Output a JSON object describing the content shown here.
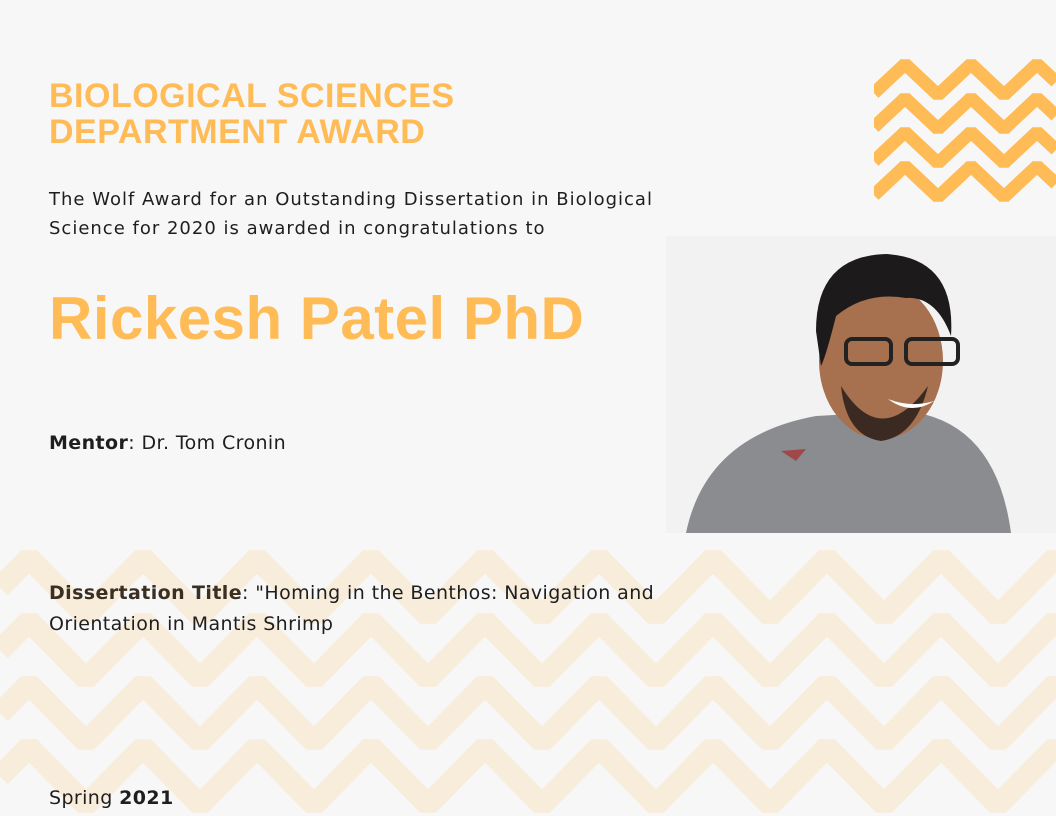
{
  "colors": {
    "accent": "#ffbb55",
    "pattern_light": "#f8ecda",
    "background": "#f7f7f7"
  },
  "heading": {
    "line1": "BIOLOGICAL SCIENCES",
    "line2": "DEPARTMENT AWARD"
  },
  "intro": "The Wolf Award for an Outstanding Dissertation in Biological Science for 2020 is awarded in congratulations to",
  "recipient": "Rickesh Patel PhD",
  "mentor": {
    "label": "Mentor",
    "value": ": Dr. Tom Cronin"
  },
  "dissertation": {
    "label": "Dissertation Title",
    "value": ": \"Homing in the Benthos: Navigation and Orientation in Mantis Shrimp"
  },
  "date": {
    "season": "Spring",
    "year": "2021"
  },
  "photo": {
    "icon": "portrait-photo"
  }
}
